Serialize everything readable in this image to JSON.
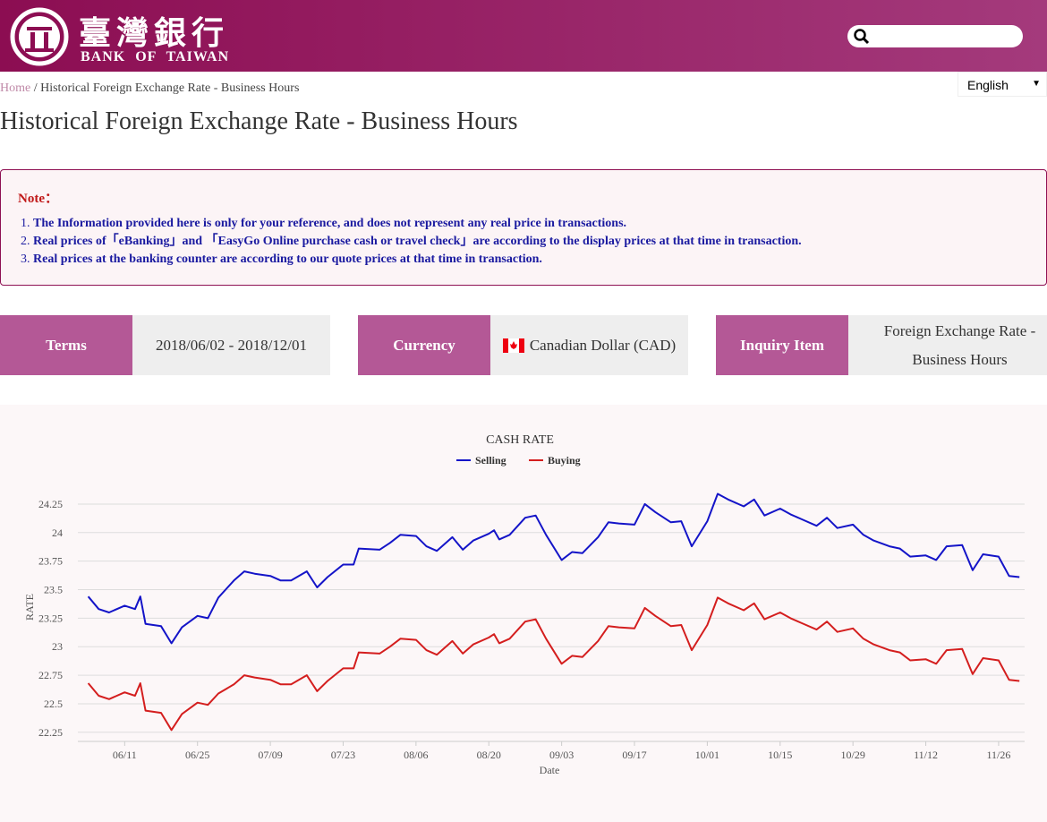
{
  "header": {
    "logo_title": "臺灣銀行",
    "logo_subtitle": "BANK OF TAIWAN",
    "language": "English"
  },
  "breadcrumb": {
    "items": [
      "Home",
      "Historical Foreign Exchange Rate - Business Hours"
    ],
    "separator": "/"
  },
  "title": "Historical Foreign Exchange Rate - Business Hours",
  "note": {
    "heading": "Note：",
    "items": [
      "The Information provided here is only for your reference, and does not represent any real price in transactions.",
      "Real prices of「eBanking」and 「EasyGo Online purchase cash or travel check」are according to the display prices at that time in transaction.",
      "Real prices at the banking counter are according to our quote prices at that time in transaction."
    ]
  },
  "query": [
    {
      "label": "Terms",
      "value": "2018/06/02 - 2018/12/01"
    },
    {
      "label": "Currency",
      "value": "Canadian Dollar (CAD)"
    },
    {
      "label": "Inquiry Item",
      "value": "Foreign Exchange Rate - Business Hours"
    }
  ],
  "chart_data": {
    "type": "line",
    "title": "CASH RATE",
    "x_label": "Date",
    "y_label": "RATE",
    "grid": true,
    "x": [
      "06/04",
      "06/06",
      "06/08",
      "06/11",
      "06/13",
      "06/14",
      "06/15",
      "06/18",
      "06/20",
      "06/22",
      "06/25",
      "06/27",
      "06/29",
      "07/02",
      "07/04",
      "07/06",
      "07/09",
      "07/11",
      "07/13",
      "07/16",
      "07/18",
      "07/20",
      "07/23",
      "07/25",
      "07/26",
      "07/30",
      "08/01",
      "08/03",
      "08/06",
      "08/08",
      "08/10",
      "08/13",
      "08/15",
      "08/17",
      "08/20",
      "08/21",
      "08/22",
      "08/24",
      "08/27",
      "08/29",
      "08/31",
      "09/03",
      "09/05",
      "09/07",
      "09/10",
      "09/12",
      "09/14",
      "09/17",
      "09/19",
      "09/21",
      "09/24",
      "09/26",
      "09/28",
      "10/01",
      "10/03",
      "10/05",
      "10/08",
      "10/10",
      "10/12",
      "10/15",
      "10/17",
      "10/19",
      "10/22",
      "10/24",
      "10/26",
      "10/29",
      "10/31",
      "11/02",
      "11/05",
      "11/07",
      "11/09",
      "11/12",
      "11/14",
      "11/16",
      "11/19",
      "11/21",
      "11/23",
      "11/26",
      "11/28",
      "11/30"
    ],
    "xlim": [
      "06/02",
      "12/01"
    ],
    "xticks": [
      "06/11",
      "06/25",
      "07/09",
      "07/23",
      "08/06",
      "08/20",
      "09/03",
      "09/17",
      "10/01",
      "10/15",
      "10/29",
      "11/12",
      "11/26"
    ],
    "ylim": [
      22.17,
      24.43
    ],
    "yticks": [
      22.25,
      22.5,
      22.75,
      23,
      23.25,
      23.5,
      23.75,
      24,
      24.25
    ],
    "series": [
      {
        "name": "Selling",
        "color": "#1414c8",
        "values": [
          23.44,
          23.33,
          23.3,
          23.36,
          23.33,
          23.44,
          23.2,
          23.18,
          23.03,
          23.17,
          23.27,
          23.25,
          23.43,
          23.58,
          23.66,
          23.64,
          23.62,
          23.58,
          23.58,
          23.66,
          23.52,
          23.61,
          23.72,
          23.72,
          23.86,
          23.85,
          23.91,
          23.98,
          23.97,
          23.88,
          23.84,
          23.96,
          23.85,
          23.93,
          23.99,
          24.02,
          23.94,
          23.98,
          24.13,
          24.15,
          23.98,
          23.76,
          23.83,
          23.82,
          23.96,
          24.09,
          24.08,
          24.07,
          24.25,
          24.18,
          24.09,
          24.1,
          23.88,
          24.1,
          24.34,
          24.29,
          24.23,
          24.29,
          24.15,
          24.21,
          24.16,
          24.12,
          24.06,
          24.13,
          24.04,
          24.07,
          23.98,
          23.93,
          23.88,
          23.86,
          23.79,
          23.8,
          23.76,
          23.88,
          23.89,
          23.67,
          23.81,
          23.79,
          23.62,
          23.61
        ]
      },
      {
        "name": "Buying",
        "color": "#d41e1e",
        "values": [
          22.68,
          22.57,
          22.54,
          22.6,
          22.57,
          22.68,
          22.44,
          22.42,
          22.27,
          22.41,
          22.51,
          22.49,
          22.59,
          22.67,
          22.75,
          22.73,
          22.71,
          22.67,
          22.67,
          22.75,
          22.61,
          22.7,
          22.81,
          22.81,
          22.95,
          22.94,
          23.0,
          23.07,
          23.06,
          22.97,
          22.93,
          23.05,
          22.94,
          23.02,
          23.08,
          23.11,
          23.03,
          23.07,
          23.22,
          23.24,
          23.07,
          22.85,
          22.92,
          22.91,
          23.05,
          23.18,
          23.17,
          23.16,
          23.34,
          23.27,
          23.18,
          23.19,
          22.97,
          23.19,
          23.43,
          23.38,
          23.32,
          23.38,
          23.24,
          23.3,
          23.25,
          23.21,
          23.15,
          23.22,
          23.13,
          23.16,
          23.07,
          23.02,
          22.97,
          22.95,
          22.88,
          22.89,
          22.85,
          22.97,
          22.98,
          22.76,
          22.9,
          22.88,
          22.71,
          22.7
        ]
      }
    ]
  }
}
